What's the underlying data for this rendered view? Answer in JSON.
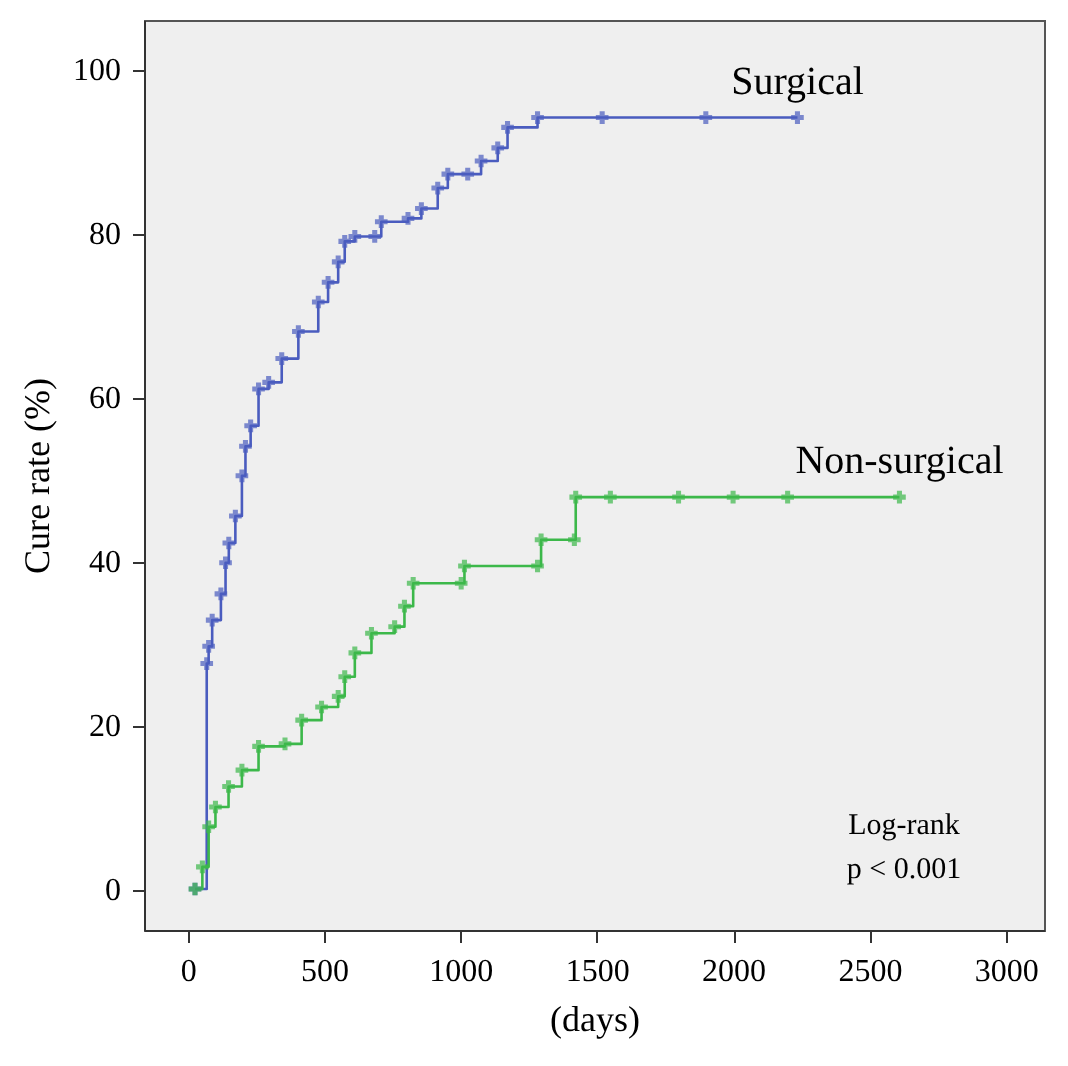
{
  "chart_data": {
    "type": "step",
    "xlabel": "(days)",
    "ylabel": "Cure rate (%)",
    "xlim": [
      -160,
      3140
    ],
    "ylim": [
      -5,
      106
    ],
    "xticks": [
      0,
      500,
      1000,
      1500,
      2000,
      2500,
      3000
    ],
    "yticks": [
      0,
      20,
      40,
      60,
      80,
      100
    ],
    "grid": false,
    "legend": false,
    "marker": "cross",
    "line_style": "solid",
    "annotations": [
      "Log-rank",
      "p < 0.001"
    ],
    "series": [
      {
        "name": "Surgical",
        "color": "#4a5cbf",
        "x": [
          27,
          70,
          77,
          90,
          122,
          139,
          151,
          175,
          199,
          212,
          231,
          260,
          297,
          345,
          406,
          479,
          515,
          552,
          576,
          613,
          686,
          710,
          808,
          857,
          917,
          954,
          1027,
          1076,
          1137,
          1173,
          1283,
          1520,
          1900,
          2236
        ],
        "values": [
          0,
          27.5,
          29.6,
          32.8,
          36,
          39.8,
          42.2,
          45.5,
          50.4,
          54,
          56.5,
          61,
          61.8,
          64.7,
          68,
          71.6,
          74,
          76.5,
          79,
          79.6,
          79.6,
          81.4,
          81.8,
          83,
          85.5,
          87.2,
          87.2,
          88.8,
          90.4,
          92.9,
          94.1,
          94.1,
          94.1,
          94.1
        ]
      },
      {
        "name": "Non-surgical",
        "color": "#3cb84a",
        "x": [
          27,
          54,
          77,
          102,
          150,
          199,
          260,
          357,
          418,
          491,
          552,
          576,
          613,
          674,
          759,
          795,
          827,
          1003,
          1015,
          1283,
          1296,
          1418,
          1423,
          1550,
          1800,
          2000,
          2200,
          2610
        ],
        "values": [
          0,
          2.7,
          7.6,
          10,
          12.5,
          14.5,
          17.4,
          17.7,
          20.6,
          22.2,
          23.5,
          25.9,
          28.8,
          31.2,
          32,
          34.5,
          37.3,
          37.3,
          39.4,
          39.4,
          42.6,
          42.6,
          47.8,
          47.8,
          47.8,
          47.8,
          47.8,
          47.8
        ]
      }
    ]
  }
}
